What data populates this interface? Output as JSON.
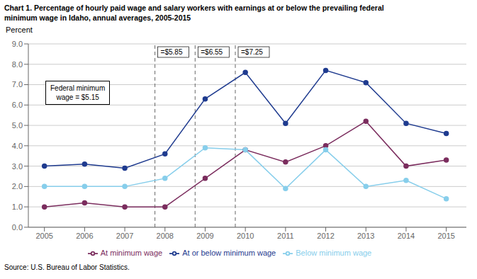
{
  "chart_data": {
    "type": "line",
    "title": "Chart 1. Percentage of hourly paid wage and salary workers with earnings at or below the prevailing federal\nminimum wage in Idaho, annual averages, 2005-2015",
    "ylabel": "Percent",
    "source": "Source: U.S. Bureau of Labor Statistics.",
    "x": [
      2005,
      2006,
      2007,
      2008,
      2009,
      2010,
      2011,
      2012,
      2013,
      2014,
      2015
    ],
    "series": [
      {
        "name": "At or below minimum wage",
        "color": "#1F3B8F",
        "values": [
          3.0,
          3.1,
          2.9,
          3.6,
          6.3,
          7.6,
          5.1,
          7.7,
          7.1,
          5.1,
          4.6
        ]
      },
      {
        "name": "At minimum wage",
        "color": "#7B2D5E",
        "values": [
          1.0,
          1.2,
          1.0,
          1.0,
          2.4,
          3.8,
          3.2,
          4.0,
          5.2,
          3.0,
          3.3
        ]
      },
      {
        "name": "Below minimum wage",
        "color": "#87CEEB",
        "values": [
          2.0,
          2.0,
          2.0,
          2.4,
          3.9,
          3.8,
          1.9,
          3.8,
          2.0,
          2.3,
          1.4
        ]
      }
    ],
    "vlines": [
      {
        "x": 2007.75,
        "label": "=$5.85"
      },
      {
        "x": 2008.75,
        "label": "=$6.55"
      },
      {
        "x": 2009.75,
        "label": "=$7.25"
      }
    ],
    "annotations": [
      "Federal minimum\nwage = $5.15"
    ],
    "xlim": [
      2004.6,
      2015.5
    ],
    "xticks": [
      2005,
      2006,
      2007,
      2008,
      2009,
      2010,
      2011,
      2012,
      2013,
      2014,
      2015
    ],
    "ylim": [
      0.0,
      9.0
    ],
    "yticks": [
      {
        "value": 0.0,
        "label": "0.0"
      },
      {
        "value": 1.0,
        "label": "1.0"
      },
      {
        "value": 2.0,
        "label": "2.0"
      },
      {
        "value": 3.0,
        "label": "3.0"
      },
      {
        "value": 4.0,
        "label": "4.0"
      },
      {
        "value": 5.0,
        "label": "5.0"
      },
      {
        "value": 6.0,
        "label": "6.0"
      },
      {
        "value": 7.0,
        "label": "7.0"
      },
      {
        "value": 8.0,
        "label": "8.0"
      },
      {
        "value": 9.0,
        "label": "9.0"
      }
    ],
    "grid": true,
    "legend": "bottom",
    "marker": "circle",
    "line_style": "solid"
  }
}
